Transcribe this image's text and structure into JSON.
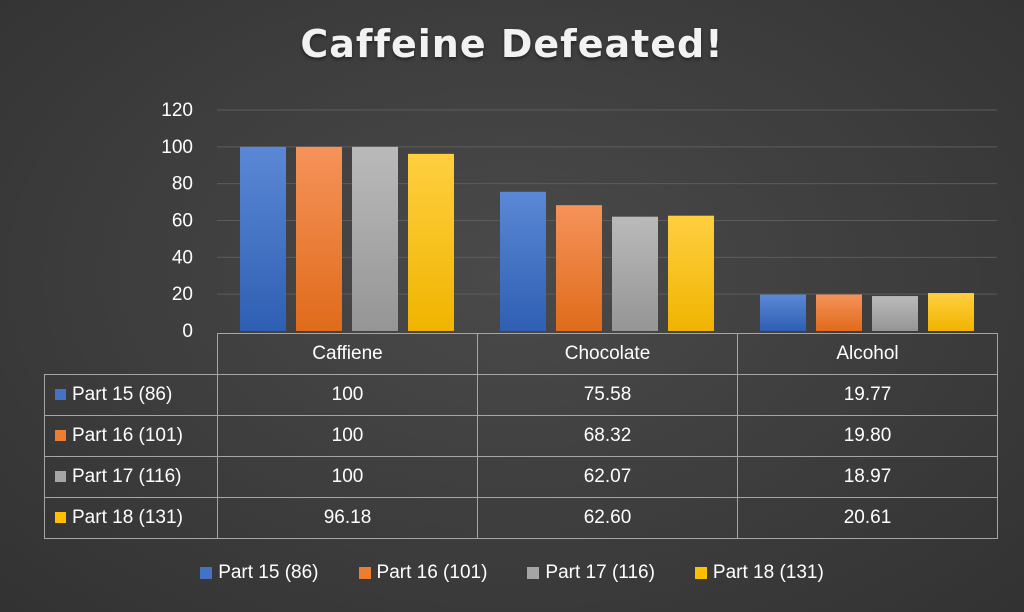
{
  "chart_data": {
    "type": "bar",
    "title": "Caffeine Defeated!",
    "categories": [
      "Caffiene",
      "Chocolate",
      "Alcohol"
    ],
    "ylim": [
      0,
      120
    ],
    "y_ticks": [
      0,
      20,
      40,
      60,
      80,
      100,
      120
    ],
    "grid": true,
    "legend_position": "bottom",
    "data_table_shown": true,
    "series": [
      {
        "name": "Part 15 (86)",
        "color": "#4472c4",
        "values": [
          100,
          75.58,
          19.77
        ],
        "labels": [
          "100",
          "75.58",
          "19.77"
        ]
      },
      {
        "name": "Part 16 (101)",
        "color": "#ed7d31",
        "values": [
          100,
          68.32,
          19.8
        ],
        "labels": [
          "100",
          "68.32",
          "19.80"
        ]
      },
      {
        "name": "Part 17 (116)",
        "color": "#a5a5a5",
        "values": [
          100,
          62.07,
          18.97
        ],
        "labels": [
          "100",
          "62.07",
          "18.97"
        ]
      },
      {
        "name": "Part 18 (131)",
        "color": "#ffc000",
        "values": [
          96.18,
          62.6,
          20.61
        ],
        "labels": [
          "96.18",
          "62.60",
          "20.61"
        ]
      }
    ]
  }
}
